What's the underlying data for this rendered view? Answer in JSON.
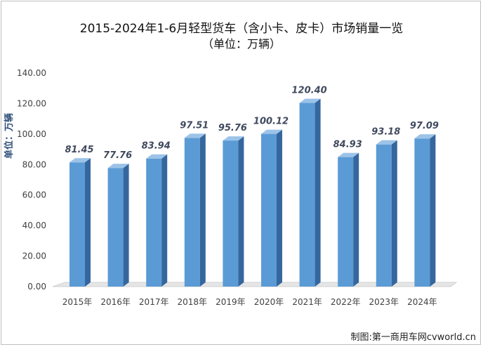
{
  "chart_data": {
    "type": "bar",
    "title": "2015-2024年1-6月轻型货车（含小卡、皮卡）市场销量一览",
    "subtitle": "（单位：万辆）",
    "ylabel": "单位：万辆",
    "xlabel": "",
    "categories": [
      "2015年",
      "2016年",
      "2017年",
      "2018年",
      "2019年",
      "2020年",
      "2021年",
      "2022年",
      "2023年",
      "2024年"
    ],
    "values": [
      81.45,
      77.76,
      83.94,
      97.51,
      95.76,
      100.12,
      120.4,
      84.93,
      93.18,
      97.09
    ],
    "data_labels": [
      "81.45",
      "77.76",
      "83.94",
      "97.51",
      "95.76",
      "100.12",
      "120.40",
      "84.93",
      "93.18",
      "97.09"
    ],
    "yticks": [
      "0.00",
      "20.00",
      "40.00",
      "60.00",
      "80.00",
      "100.00",
      "120.00",
      "140.00"
    ],
    "ylim": [
      0,
      140
    ],
    "grid": false,
    "style": "3d-column",
    "bar_color": "#5b9bd5",
    "bar_side_color": "#35679e",
    "bar_top_color": "#9cc3e8"
  },
  "credit": "制图:第一商用车网cvworld.cn"
}
